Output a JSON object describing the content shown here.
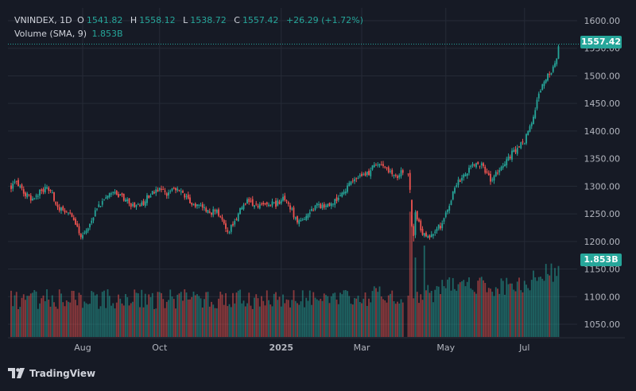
{
  "legend": {
    "symbol": "VNINDEX, 1D",
    "o_label": "O",
    "o_value": "1541.82",
    "h_label": "H",
    "h_value": "1558.12",
    "l_label": "L",
    "l_value": "1538.72",
    "c_label": "C",
    "c_value": "1557.42",
    "change": "+26.29 (+1.72%)",
    "volume_label": "Volume (SMA, 9)",
    "volume_value": "1.853B"
  },
  "badges": {
    "last_price": "1557.42",
    "last_volume": "1.853B"
  },
  "footer": {
    "brand": "TradingView"
  },
  "colors": {
    "up": "#26a69a",
    "down": "#ef5350",
    "background": "#161a25",
    "grid": "#252a36"
  },
  "chart_data": {
    "type": "candlestick",
    "symbol": "VNINDEX",
    "interval": "1D",
    "y_ticks": [
      1050,
      1100,
      1150,
      1200,
      1250,
      1300,
      1350,
      1400,
      1450,
      1500,
      1550,
      1600
    ],
    "y_tick_labels": [
      "1050.00",
      "1100.00",
      "1150.00",
      "1200.00",
      "1250.00",
      "1300.00",
      "1350.00",
      "1400.00",
      "1450.00",
      "1500.00",
      "1550.00",
      "1600.00"
    ],
    "ylim": [
      1027,
      1623
    ],
    "x_tick_labels": [
      "Aug",
      "Oct",
      "2025",
      "Mar",
      "May",
      "Jul"
    ],
    "x_tick_bars": [
      40,
      83,
      151,
      196,
      243,
      287
    ],
    "total_bars": 308,
    "close_path_keypoints": [
      [
        0,
        1300
      ],
      [
        3,
        1305
      ],
      [
        8,
        1285
      ],
      [
        12,
        1275
      ],
      [
        17,
        1295
      ],
      [
        22,
        1292
      ],
      [
        26,
        1262
      ],
      [
        32,
        1255
      ],
      [
        36,
        1230
      ],
      [
        40,
        1207
      ],
      [
        44,
        1232
      ],
      [
        48,
        1260
      ],
      [
        53,
        1283
      ],
      [
        57,
        1288
      ],
      [
        60,
        1285
      ],
      [
        64,
        1275
      ],
      [
        68,
        1265
      ],
      [
        72,
        1262
      ],
      [
        76,
        1280
      ],
      [
        80,
        1292
      ],
      [
        83,
        1295
      ],
      [
        86,
        1286
      ],
      [
        90,
        1292
      ],
      [
        94,
        1292
      ],
      [
        98,
        1282
      ],
      [
        102,
        1266
      ],
      [
        107,
        1263
      ],
      [
        111,
        1250
      ],
      [
        114,
        1258
      ],
      [
        118,
        1236
      ],
      [
        121,
        1215
      ],
      [
        124,
        1232
      ],
      [
        128,
        1256
      ],
      [
        132,
        1274
      ],
      [
        136,
        1264
      ],
      [
        140,
        1263
      ],
      [
        144,
        1270
      ],
      [
        148,
        1266
      ],
      [
        152,
        1279
      ],
      [
        156,
        1262
      ],
      [
        160,
        1235
      ],
      [
        164,
        1243
      ],
      [
        168,
        1258
      ],
      [
        172,
        1266
      ],
      [
        176,
        1260
      ],
      [
        180,
        1273
      ],
      [
        184,
        1282
      ],
      [
        188,
        1300
      ],
      [
        192,
        1311
      ],
      [
        196,
        1318
      ],
      [
        200,
        1323
      ],
      [
        203,
        1339
      ],
      [
        207,
        1337
      ],
      [
        210,
        1332
      ],
      [
        213,
        1321
      ],
      [
        216,
        1317
      ],
      [
        218,
        1326
      ],
      [
        222,
        1318
      ],
      [
        224,
        1275
      ],
      [
        227,
        1244
      ],
      [
        230,
        1212
      ],
      [
        234,
        1208
      ],
      [
        237,
        1222
      ],
      [
        240,
        1228
      ],
      [
        244,
        1258
      ],
      [
        248,
        1299
      ],
      [
        252,
        1317
      ],
      [
        256,
        1329
      ],
      [
        260,
        1343
      ],
      [
        264,
        1335
      ],
      [
        268,
        1310
      ],
      [
        272,
        1325
      ],
      [
        276,
        1343
      ],
      [
        280,
        1360
      ],
      [
        284,
        1372
      ],
      [
        287,
        1382
      ],
      [
        291,
        1415
      ],
      [
        294,
        1455
      ],
      [
        298,
        1490
      ],
      [
        302,
        1510
      ],
      [
        304,
        1527
      ],
      [
        305,
        1531
      ],
      [
        306,
        1557
      ]
    ],
    "last_bar": {
      "open": 1541.82,
      "high": 1558.12,
      "low": 1538.72,
      "close": 1557.42,
      "change": 26.29,
      "change_pct": 1.72
    },
    "volume": {
      "sma_period": 9,
      "last_value_billions": 1.853
    }
  }
}
